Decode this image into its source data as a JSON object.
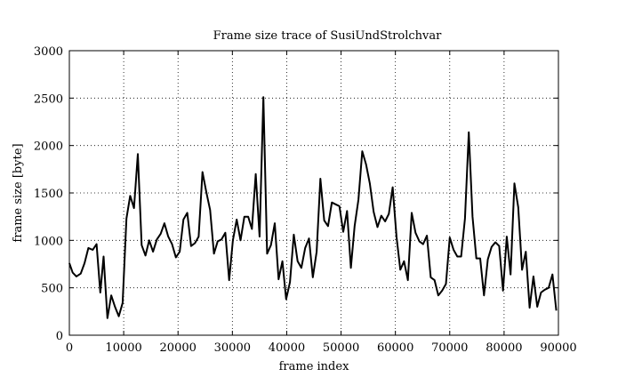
{
  "chart_data": {
    "type": "line",
    "title": "Frame size trace of SusiUndStrolchvar",
    "xlabel": "frame index",
    "ylabel": "frame size [byte]",
    "xlim": [
      0,
      90000
    ],
    "ylim": [
      0,
      3000
    ],
    "xticks": [
      0,
      10000,
      20000,
      30000,
      40000,
      50000,
      60000,
      70000,
      80000,
      90000
    ],
    "yticks": [
      0,
      500,
      1000,
      1500,
      2000,
      2500,
      3000
    ],
    "grid": true,
    "grid_style": "dotted",
    "series": [
      {
        "color": "#000000",
        "x": [
          0,
          600,
          1300,
          2100,
          2800,
          3500,
          4300,
          5000,
          5700,
          6300,
          7000,
          7700,
          8400,
          9100,
          9800,
          10500,
          11200,
          11900,
          12600,
          13300,
          14000,
          14700,
          15400,
          16100,
          16800,
          17500,
          18200,
          18900,
          19600,
          20300,
          21000,
          21700,
          22400,
          23100,
          23800,
          24500,
          25200,
          25900,
          26600,
          27300,
          28000,
          28700,
          29400,
          30100,
          30800,
          31500,
          32200,
          32900,
          33600,
          34300,
          35000,
          35700,
          36400,
          37100,
          37800,
          38500,
          39200,
          39900,
          40600,
          41300,
          42000,
          42700,
          43400,
          44100,
          44800,
          45500,
          46200,
          46900,
          47600,
          48300,
          49000,
          49700,
          50400,
          51100,
          51800,
          52500,
          53200,
          53900,
          54600,
          55300,
          56000,
          56700,
          57400,
          58100,
          58800,
          59500,
          60200,
          60900,
          61600,
          62300,
          63000,
          63700,
          64400,
          65100,
          65800,
          66500,
          67200,
          67900,
          68600,
          69300,
          70000,
          70700,
          71400,
          72100,
          72800,
          73500,
          74200,
          74900,
          75600,
          76300,
          77000,
          77700,
          78400,
          79100,
          79800,
          80500,
          81200,
          81900,
          82600,
          83300,
          84000,
          84700,
          85400,
          86100,
          86800,
          87500,
          88200,
          88900,
          89600
        ],
        "y": [
          760,
          660,
          620,
          650,
          760,
          920,
          900,
          960,
          450,
          830,
          180,
          420,
          300,
          200,
          340,
          1230,
          1470,
          1340,
          1910,
          950,
          840,
          1000,
          880,
          1010,
          1070,
          1180,
          1040,
          960,
          820,
          880,
          1220,
          1290,
          940,
          970,
          1040,
          1720,
          1510,
          1320,
          860,
          990,
          1010,
          1080,
          580,
          1000,
          1220,
          1000,
          1250,
          1250,
          1120,
          1700,
          1040,
          2510,
          860,
          950,
          1180,
          590,
          780,
          380,
          560,
          1060,
          780,
          710,
          920,
          1020,
          610,
          880,
          1650,
          1210,
          1150,
          1400,
          1380,
          1360,
          1090,
          1310,
          710,
          1150,
          1430,
          1940,
          1800,
          1600,
          1300,
          1140,
          1260,
          1200,
          1280,
          1560,
          1040,
          690,
          780,
          580,
          1290,
          1080,
          990,
          960,
          1050,
          610,
          580,
          420,
          470,
          540,
          1030,
          900,
          830,
          830,
          1230,
          2140,
          1250,
          810,
          810,
          420,
          800,
          930,
          980,
          940,
          470,
          1040,
          640,
          1600,
          1350,
          690,
          880,
          290,
          620,
          300,
          450,
          480,
          500,
          640,
          260
        ]
      }
    ]
  }
}
